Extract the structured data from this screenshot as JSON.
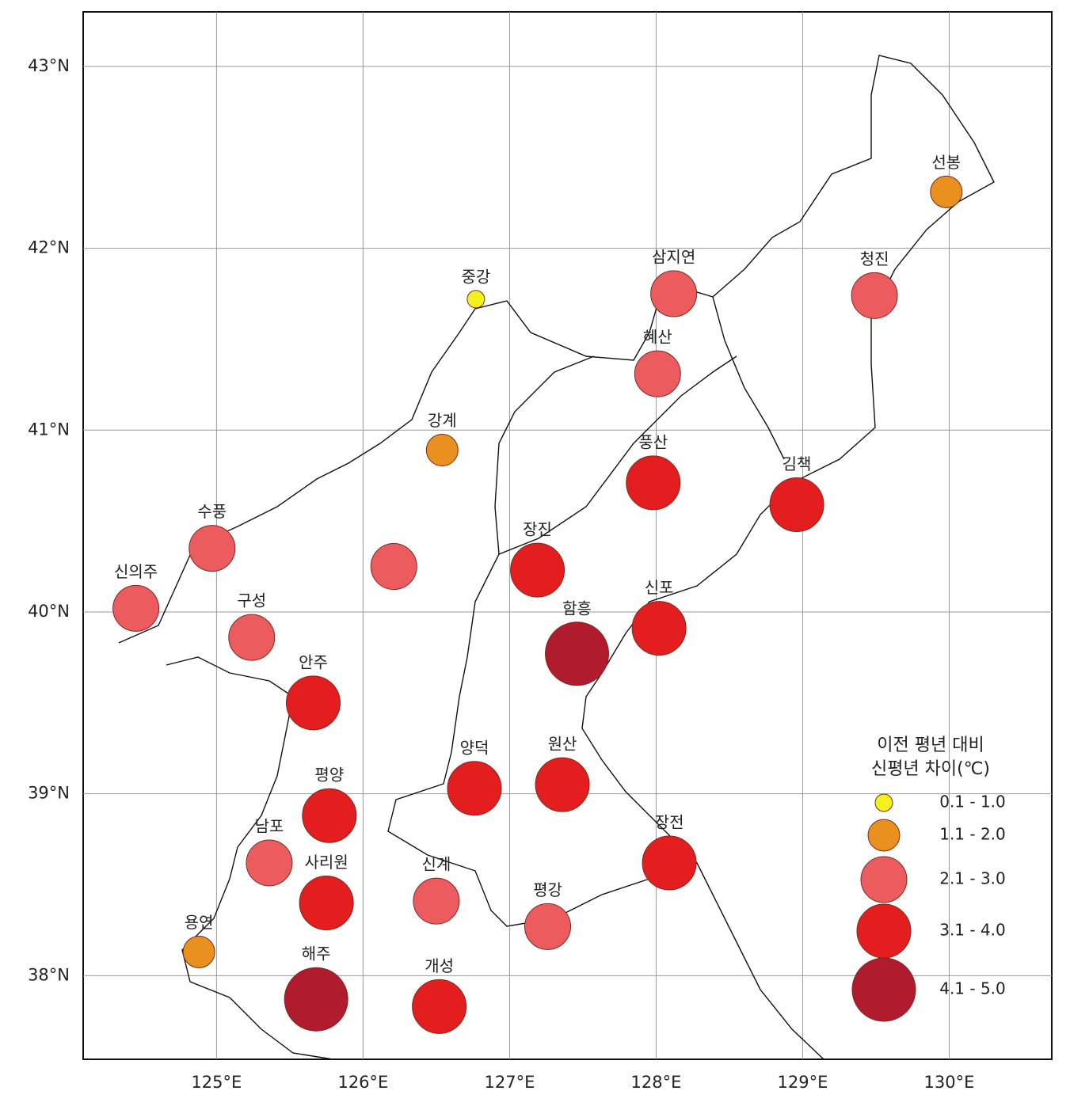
{
  "map": {
    "xticks": [
      {
        "value": 125,
        "label": "125°E"
      },
      {
        "value": 126,
        "label": "126°E"
      },
      {
        "value": 127,
        "label": "127°E"
      },
      {
        "value": 128,
        "label": "128°E"
      },
      {
        "value": 129,
        "label": "129°E"
      },
      {
        "value": 130,
        "label": "130°E"
      }
    ],
    "yticks": [
      {
        "value": 38,
        "label": "38°N"
      },
      {
        "value": 39,
        "label": "39°N"
      },
      {
        "value": 40,
        "label": "40°N"
      },
      {
        "value": 41,
        "label": "41°N"
      },
      {
        "value": 42,
        "label": "42°N"
      },
      {
        "value": 43,
        "label": "43°N"
      }
    ],
    "xlim": [
      124.09,
      130.7
    ],
    "ylim": [
      37.54,
      43.3
    ],
    "legend": {
      "title": [
        "이전 평년 대비",
        "신평년 차이(℃)"
      ],
      "classes": [
        {
          "label": "0.1 - 1.0",
          "color": "#f4f21c"
        },
        {
          "label": "1.1 - 2.0",
          "color": "#e8911f"
        },
        {
          "label": "2.1 - 3.0",
          "color": "#ec5c5e"
        },
        {
          "label": "3.1 - 4.0",
          "color": "#e41e1e"
        },
        {
          "label": "4.1 - 5.0",
          "color": "#b01b2d"
        }
      ]
    },
    "stations": [
      {
        "name": "중강",
        "lon": 126.77,
        "lat": 41.72,
        "class": "0.1 - 1.0"
      },
      {
        "name": "선봉",
        "lon": 129.98,
        "lat": 42.31,
        "class": "1.1 - 2.0"
      },
      {
        "name": "강계",
        "lon": 126.54,
        "lat": 40.89,
        "class": "1.1 - 2.0"
      },
      {
        "name": "용연",
        "lon": 124.88,
        "lat": 38.13,
        "class": "1.1 - 2.0"
      },
      {
        "name": "삼지연",
        "lon": 128.12,
        "lat": 41.75,
        "class": "2.1 - 3.0"
      },
      {
        "name": "청진",
        "lon": 129.49,
        "lat": 41.74,
        "class": "2.1 - 3.0"
      },
      {
        "name": "혜산",
        "lon": 128.01,
        "lat": 41.31,
        "class": "2.1 - 3.0"
      },
      {
        "name": "수풍",
        "lon": 124.97,
        "lat": 40.35,
        "class": "2.1 - 3.0"
      },
      {
        "name": null,
        "lon": 126.21,
        "lat": 40.25,
        "class": "2.1 - 3.0"
      },
      {
        "name": "신의주",
        "lon": 124.45,
        "lat": 40.02,
        "class": "2.1 - 3.0"
      },
      {
        "name": "구성",
        "lon": 125.24,
        "lat": 39.86,
        "class": "2.1 - 3.0"
      },
      {
        "name": "남포",
        "lon": 125.36,
        "lat": 38.62,
        "class": "2.1 - 3.0"
      },
      {
        "name": "신계",
        "lon": 126.5,
        "lat": 38.41,
        "class": "2.1 - 3.0"
      },
      {
        "name": "평강",
        "lon": 127.26,
        "lat": 38.27,
        "class": "2.1 - 3.0"
      },
      {
        "name": "풍산",
        "lon": 127.98,
        "lat": 40.71,
        "class": "3.1 - 4.0"
      },
      {
        "name": "김책",
        "lon": 128.96,
        "lat": 40.59,
        "class": "3.1 - 4.0"
      },
      {
        "name": "장진",
        "lon": 127.19,
        "lat": 40.23,
        "class": "3.1 - 4.0"
      },
      {
        "name": "신포",
        "lon": 128.02,
        "lat": 39.91,
        "class": "3.1 - 4.0"
      },
      {
        "name": "안주",
        "lon": 125.66,
        "lat": 39.5,
        "class": "3.1 - 4.0"
      },
      {
        "name": "양덕",
        "lon": 126.76,
        "lat": 39.03,
        "class": "3.1 - 4.0"
      },
      {
        "name": "원산",
        "lon": 127.36,
        "lat": 39.05,
        "class": "3.1 - 4.0"
      },
      {
        "name": "평양",
        "lon": 125.77,
        "lat": 38.88,
        "class": "3.1 - 4.0"
      },
      {
        "name": "사리원",
        "lon": 125.75,
        "lat": 38.4,
        "class": "3.1 - 4.0"
      },
      {
        "name": "장전",
        "lon": 128.09,
        "lat": 38.62,
        "class": "3.1 - 4.0"
      },
      {
        "name": "개성",
        "lon": 126.52,
        "lat": 37.83,
        "class": "3.1 - 4.0"
      },
      {
        "name": "함흥",
        "lon": 127.46,
        "lat": 39.77,
        "class": "4.1 - 5.0"
      },
      {
        "name": "해주",
        "lon": 125.68,
        "lat": 37.87,
        "class": "4.1 - 5.0"
      }
    ]
  }
}
